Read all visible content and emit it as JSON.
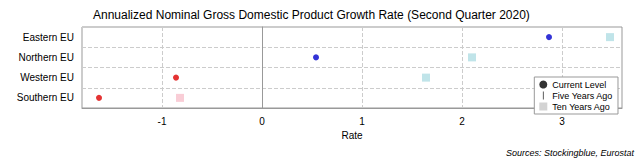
{
  "chart_data": {
    "type": "scatter",
    "title": "Annualized Nominal Gross Domestic Product Growth Rate (Second Quarter 2020)",
    "x_label": "Rate",
    "source": "Sources: Stockingblue, Eurostat",
    "categories": [
      "Eastern EU",
      "Northern EU",
      "Western EU",
      "Southern EU"
    ],
    "orientation": "horizontal",
    "series": [
      {
        "name": "Current Level",
        "color": "#000000",
        "marker": "circle",
        "colors": [
          "#0000cc",
          "#0000cc",
          "#dd0000",
          "#dd0000"
        ],
        "values": [
          2.87,
          0.54,
          -0.86,
          -1.63
        ]
      },
      {
        "name": "Five Years Ago",
        "color": "#000000",
        "marker": "line",
        "values": [
          null,
          null,
          null,
          null
        ]
      },
      {
        "name": "Ten Years Ago",
        "color": "#c8c8c8",
        "marker": "square",
        "colors": [
          "#b0dde3",
          "#b0dde3",
          "#b0dde3",
          "#f8c0cc"
        ],
        "values": [
          3.48,
          2.1,
          1.64,
          -0.82
        ]
      }
    ],
    "xlim": [
      -1.8,
      3.6
    ],
    "xticks": [
      -1,
      0,
      1,
      2,
      3
    ],
    "grid": true,
    "legend": "lower right"
  }
}
